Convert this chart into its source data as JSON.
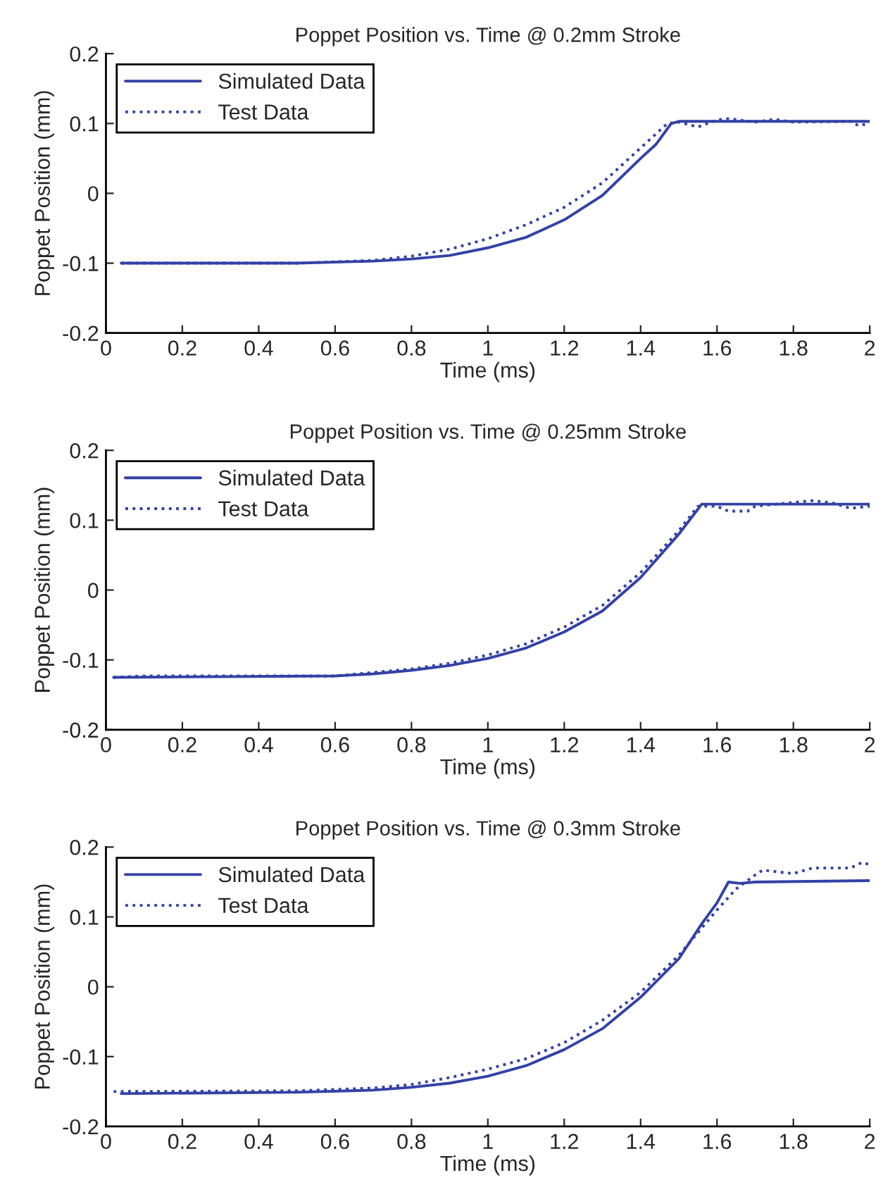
{
  "chart_data": [
    {
      "type": "line",
      "title": "Poppet Position vs. Time @ 0.2mm Stroke",
      "xlabel": "Time (ms)",
      "ylabel": "Poppet Position (mm)",
      "xlim": [
        0,
        2
      ],
      "ylim": [
        -0.2,
        0.2
      ],
      "xticks": [
        0,
        0.2,
        0.4,
        0.6,
        0.8,
        1,
        1.2,
        1.4,
        1.6,
        1.8,
        2
      ],
      "yticks": [
        -0.2,
        -0.1,
        0,
        0.1,
        0.2
      ],
      "legend": "top left",
      "grid": false,
      "series": [
        {
          "name": "Simulated Data",
          "color": "#3341a6",
          "line_style": "solid",
          "x": [
            0.04,
            0.5,
            0.7,
            0.8,
            0.9,
            1.0,
            1.1,
            1.2,
            1.3,
            1.4,
            1.44,
            1.48,
            1.5,
            1.6,
            2.0
          ],
          "values": [
            -0.1,
            -0.1,
            -0.097,
            -0.094,
            -0.089,
            -0.078,
            -0.063,
            -0.038,
            -0.003,
            0.05,
            0.07,
            0.1,
            0.103,
            0.103,
            0.103
          ]
        },
        {
          "name": "Test Data",
          "color": "#3341a6",
          "line_style": "dotted",
          "x": [
            0.04,
            0.5,
            0.7,
            0.8,
            0.9,
            1.0,
            1.1,
            1.2,
            1.3,
            1.4,
            1.47,
            1.5,
            1.55,
            1.6,
            1.63,
            1.7,
            1.75,
            1.8,
            1.95,
            1.97,
            2.0
          ],
          "values": [
            -0.1,
            -0.1,
            -0.096,
            -0.09,
            -0.08,
            -0.065,
            -0.045,
            -0.02,
            0.015,
            0.065,
            0.1,
            0.102,
            0.095,
            0.105,
            0.107,
            0.102,
            0.106,
            0.102,
            0.103,
            0.097,
            0.1
          ]
        }
      ]
    },
    {
      "type": "line",
      "title": "Poppet Position vs. Time @ 0.25mm Stroke",
      "xlabel": "Time (ms)",
      "ylabel": "Poppet Position (mm)",
      "xlim": [
        0,
        2
      ],
      "ylim": [
        -0.2,
        0.2
      ],
      "xticks": [
        0,
        0.2,
        0.4,
        0.6,
        0.8,
        1,
        1.2,
        1.4,
        1.6,
        1.8,
        2
      ],
      "yticks": [
        -0.2,
        -0.1,
        0,
        0.1,
        0.2
      ],
      "legend": "top left",
      "grid": false,
      "series": [
        {
          "name": "Simulated Data",
          "color": "#3341a6",
          "line_style": "solid",
          "x": [
            0.02,
            0.6,
            0.7,
            0.8,
            0.9,
            1.0,
            1.1,
            1.2,
            1.3,
            1.4,
            1.5,
            1.56,
            1.6,
            2.0
          ],
          "values": [
            -0.125,
            -0.123,
            -0.12,
            -0.115,
            -0.108,
            -0.098,
            -0.083,
            -0.06,
            -0.03,
            0.018,
            0.08,
            0.123,
            0.123,
            0.123
          ]
        },
        {
          "name": "Test Data",
          "color": "#3341a6",
          "line_style": "dotted",
          "x": [
            0.02,
            0.1,
            0.6,
            0.8,
            0.9,
            1.0,
            1.1,
            1.2,
            1.3,
            1.4,
            1.5,
            1.55,
            1.6,
            1.63,
            1.68,
            1.7,
            1.85,
            1.9,
            1.95,
            2.0
          ],
          "values": [
            -0.125,
            -0.123,
            -0.123,
            -0.113,
            -0.105,
            -0.093,
            -0.077,
            -0.053,
            -0.022,
            0.025,
            0.085,
            0.12,
            0.12,
            0.113,
            0.113,
            0.12,
            0.128,
            0.125,
            0.117,
            0.12
          ]
        }
      ]
    },
    {
      "type": "line",
      "title": "Poppet Position vs. Time @ 0.3mm Stroke",
      "xlabel": "Time (ms)",
      "ylabel": "Poppet Position (mm)",
      "xlim": [
        0,
        2
      ],
      "ylim": [
        -0.2,
        0.2
      ],
      "xticks": [
        0,
        0.2,
        0.4,
        0.6,
        0.8,
        1,
        1.2,
        1.4,
        1.6,
        1.8,
        2
      ],
      "yticks": [
        -0.2,
        -0.1,
        0,
        0.1,
        0.2
      ],
      "legend": "top left",
      "grid": false,
      "series": [
        {
          "name": "Simulated Data",
          "color": "#3341a6",
          "line_style": "solid",
          "x": [
            0.04,
            0.5,
            0.7,
            0.8,
            0.9,
            1.0,
            1.1,
            1.2,
            1.3,
            1.4,
            1.5,
            1.56,
            1.6,
            1.63,
            1.66,
            1.7,
            2.0
          ],
          "values": [
            -0.153,
            -0.151,
            -0.148,
            -0.144,
            -0.138,
            -0.128,
            -0.113,
            -0.09,
            -0.06,
            -0.015,
            0.04,
            0.09,
            0.12,
            0.15,
            0.148,
            0.15,
            0.152
          ]
        },
        {
          "name": "Test Data",
          "color": "#3341a6",
          "line_style": "dotted",
          "x": [
            0.02,
            0.5,
            0.7,
            0.8,
            0.9,
            1.0,
            1.1,
            1.2,
            1.3,
            1.4,
            1.5,
            1.6,
            1.65,
            1.7,
            1.72,
            1.8,
            1.85,
            1.95,
            1.98,
            2.0
          ],
          "values": [
            -0.15,
            -0.149,
            -0.145,
            -0.14,
            -0.13,
            -0.118,
            -0.103,
            -0.08,
            -0.048,
            -0.008,
            0.045,
            0.11,
            0.14,
            0.16,
            0.167,
            0.162,
            0.17,
            0.17,
            0.178,
            0.175
          ]
        }
      ]
    }
  ]
}
